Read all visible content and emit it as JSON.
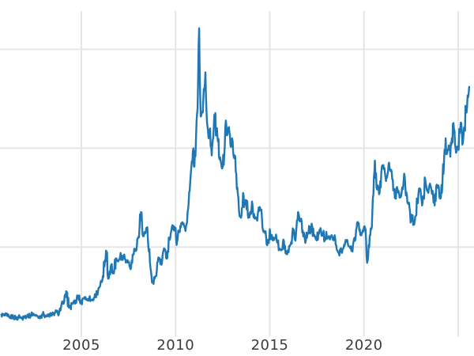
{
  "style": {
    "background": "#ffffff",
    "line_color": "#1f77b4",
    "grid_color": "#e6e6e6",
    "tick_label_color": "#3b3b3b"
  },
  "chart_data": {
    "type": "line",
    "title": "",
    "xlabel": "",
    "ylabel": "",
    "grid": true,
    "legend": false,
    "x_axis": {
      "unit": "year",
      "range": [
        2000.68,
        2025.84
      ],
      "ticks": [
        {
          "year": 2005,
          "label": "2005"
        },
        {
          "year": 2010,
          "label": "2010"
        },
        {
          "year": 2015,
          "label": "2015"
        },
        {
          "year": 2020,
          "label": "2020"
        },
        {
          "year": 2025,
          "label": ""
        }
      ]
    },
    "y_axis": {
      "range": [
        2.3,
        50.8
      ],
      "gridline_values": [
        15,
        30,
        45
      ],
      "tick_labels_visible": false
    },
    "series": {
      "x_start": 2000.75,
      "x_step_years": 0.0833333,
      "values": [
        4.75,
        4.65,
        4.6,
        4.65,
        4.5,
        4.35,
        4.35,
        4.45,
        4.35,
        4.25,
        4.2,
        4.45,
        4.4,
        4.15,
        4.5,
        4.5,
        4.45,
        4.6,
        4.55,
        4.75,
        4.9,
        4.75,
        4.55,
        4.5,
        4.4,
        4.5,
        4.75,
        4.85,
        4.6,
        4.45,
        4.55,
        4.8,
        4.55,
        4.8,
        5.0,
        5.15,
        4.95,
        5.25,
        5.8,
        6.4,
        6.6,
        7.5,
        8.1,
        5.8,
        5.9,
        6.4,
        6.7,
        6.4,
        7.2,
        7.6,
        6.8,
        6.6,
        7.2,
        7.4,
        7.0,
        7.1,
        7.3,
        7.0,
        6.9,
        7.3,
        7.7,
        8.1,
        8.8,
        9.2,
        9.7,
        10.4,
        13.0,
        14.3,
        10.2,
        11.3,
        12.3,
        11.0,
        11.7,
        13.3,
        12.9,
        13.1,
        14.1,
        13.1,
        13.8,
        13.1,
        12.9,
        12.8,
        11.9,
        12.9,
        13.8,
        14.7,
        14.5,
        16.3,
        17.9,
        20.3,
        16.9,
        17.0,
        17.3,
        18.0,
        14.3,
        11.8,
        9.6,
        9.4,
        10.5,
        11.3,
        13.4,
        13.0,
        12.3,
        14.2,
        14.5,
        13.3,
        14.4,
        16.4,
        17.2,
        18.3,
        17.5,
        17.9,
        15.8,
        17.2,
        18.2,
        18.5,
        18.6,
        17.8,
        18.5,
        20.8,
        23.5,
        27.0,
        29.5,
        27.2,
        31.5,
        36.0,
        48.2,
        34.8,
        35.5,
        39.0,
        41.5,
        34.0,
        31.5,
        33.0,
        28.9,
        31.7,
        34.8,
        32.5,
        31.0,
        28.3,
        27.7,
        27.2,
        29.0,
        34.2,
        32.0,
        33.2,
        30.3,
        31.5,
        28.7,
        28.7,
        23.8,
        22.5,
        19.6,
        19.8,
        23.2,
        21.5,
        22.1,
        19.9,
        19.5,
        20.0,
        21.4,
        20.0,
        19.5,
        19.0,
        21.0,
        20.6,
        19.4,
        17.3,
        17.1,
        15.4,
        16.1,
        17.7,
        16.5,
        16.0,
        16.3,
        16.9,
        15.6,
        14.7,
        14.5,
        14.6,
        15.9,
        14.1,
        13.9,
        14.2,
        15.3,
        15.5,
        17.3,
        16.1,
        18.0,
        20.3,
        18.9,
        19.3,
        17.5,
        16.7,
        16.0,
        17.1,
        18.2,
        17.2,
        18.1,
        16.7,
        16.6,
        16.0,
        17.2,
        17.6,
        16.7,
        17.1,
        16.1,
        17.3,
        16.4,
        16.3,
        16.6,
        16.3,
        16.4,
        15.3,
        14.5,
        14.1,
        14.7,
        14.1,
        14.9,
        15.7,
        15.9,
        15.2,
        15.0,
        14.4,
        15.2,
        16.4,
        17.6,
        18.8,
        17.5,
        16.9,
        17.2,
        18.0,
        17.7,
        12.6,
        15.3,
        16.8,
        18.0,
        23.0,
        28.1,
        24.0,
        24.2,
        23.3,
        26.1,
        27.2,
        27.0,
        25.0,
        26.0,
        27.8,
        26.5,
        25.3,
        23.7,
        22.4,
        24.1,
        23.5,
        22.8,
        23.3,
        24.2,
        25.6,
        23.3,
        21.6,
        20.9,
        18.9,
        19.8,
        18.4,
        19.7,
        21.8,
        23.8,
        23.7,
        21.3,
        22.6,
        25.3,
        23.7,
        23.2,
        24.6,
        23.6,
        22.8,
        21.3,
        24.2,
        24.1,
        22.7,
        22.5,
        25.0,
        28.2,
        31.5,
        29.3,
        30.4,
        28.7,
        31.5,
        33.8,
        30.6,
        29.5,
        30.3,
        32.3,
        33.8,
        30.8,
        33.2,
        36.0,
        38.0,
        39.3
      ]
    }
  }
}
